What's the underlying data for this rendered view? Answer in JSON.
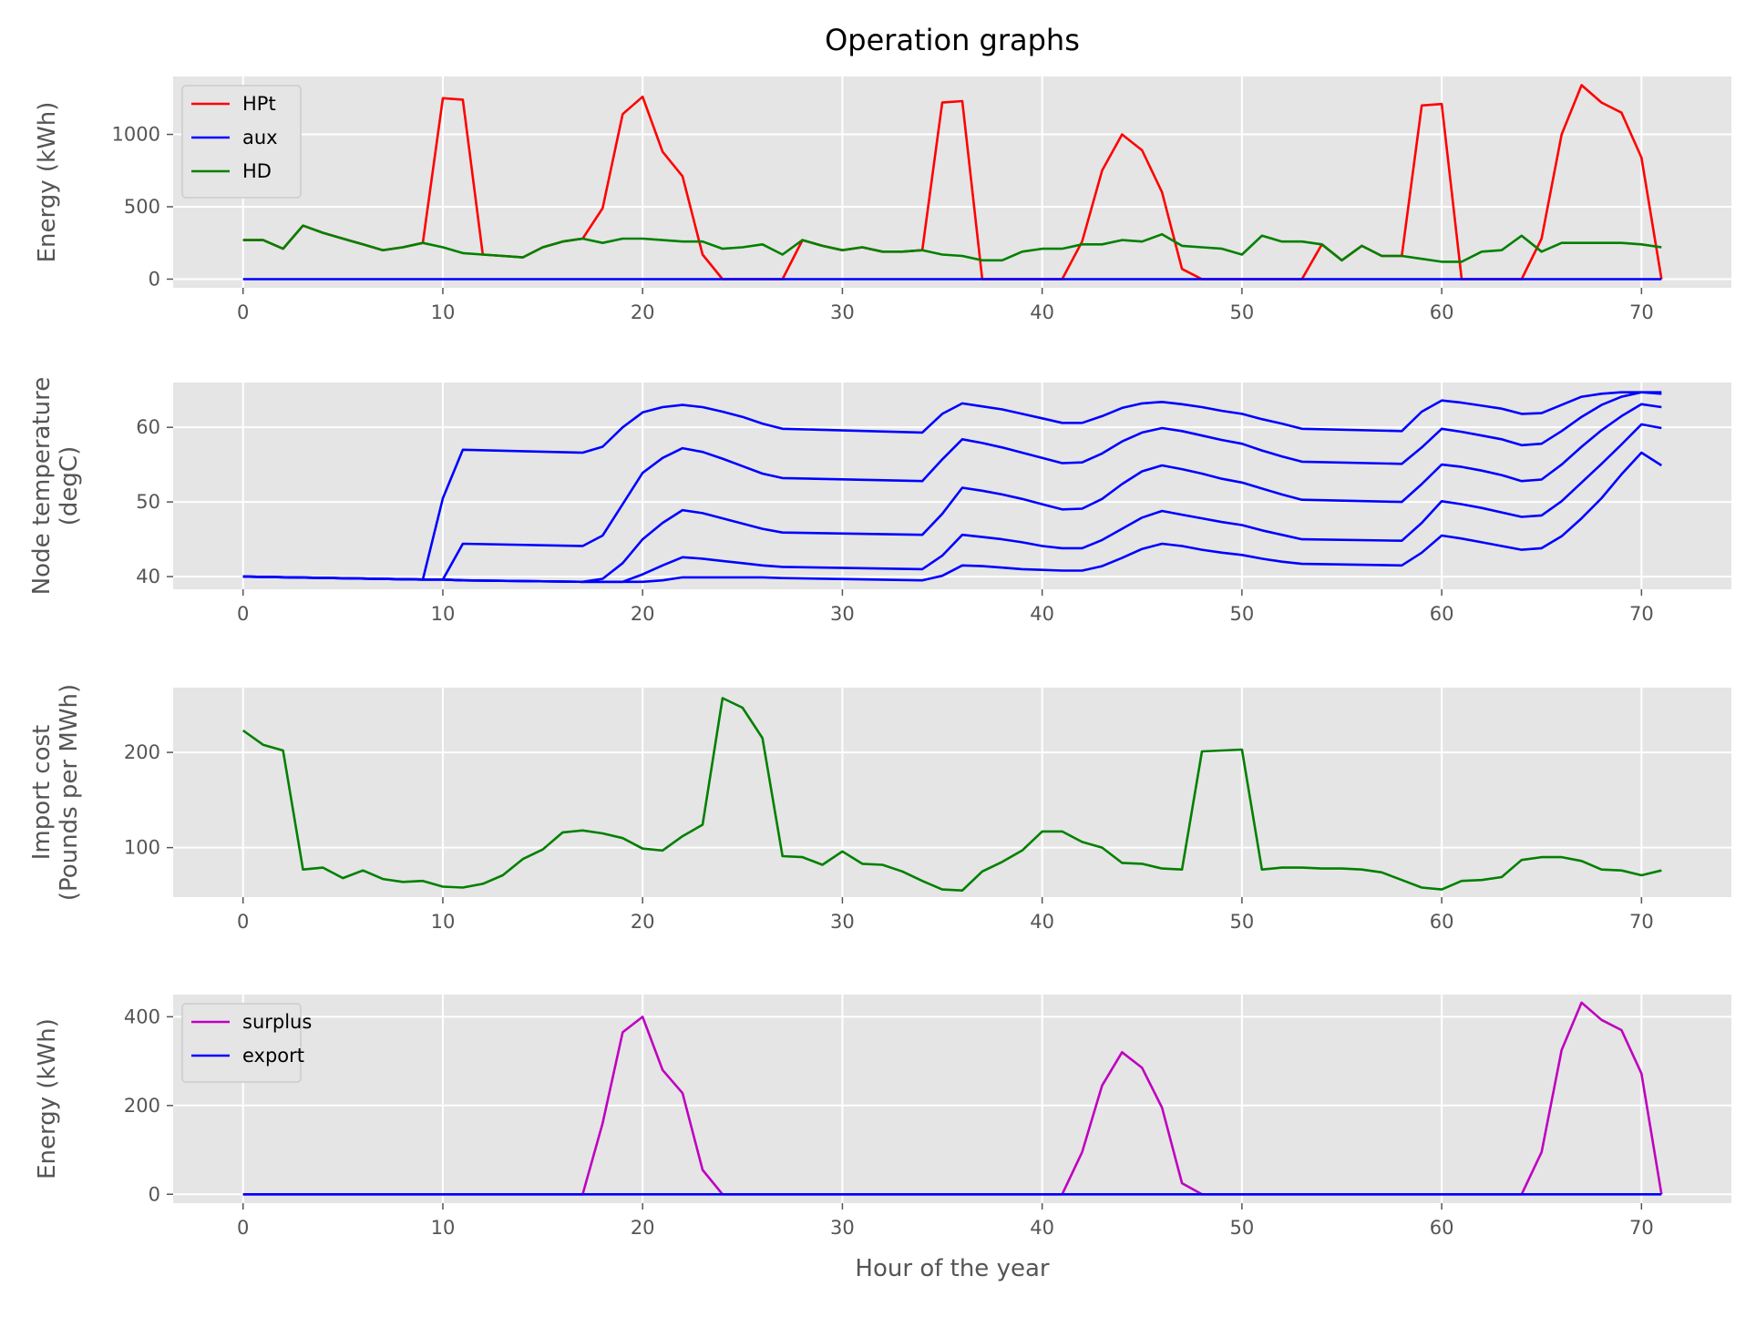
{
  "chart_data": [
    {
      "type": "line",
      "title": "Operation graphs",
      "ylabel": "Energy (kWh)",
      "xlabel": "",
      "xlim": [
        -3.5,
        74.5
      ],
      "ylim": [
        -60,
        1400
      ],
      "xticks": [
        0,
        10,
        20,
        30,
        40,
        50,
        60,
        70
      ],
      "yticks": [
        0,
        500,
        1000
      ],
      "grid": true,
      "legend": "top-left",
      "x": [
        0,
        1,
        2,
        3,
        4,
        5,
        6,
        7,
        8,
        9,
        10,
        11,
        12,
        13,
        14,
        15,
        16,
        17,
        18,
        19,
        20,
        21,
        22,
        23,
        24,
        25,
        26,
        27,
        28,
        29,
        30,
        31,
        32,
        33,
        34,
        35,
        36,
        37,
        38,
        39,
        40,
        41,
        42,
        43,
        44,
        45,
        46,
        47,
        48,
        49,
        50,
        51,
        52,
        53,
        54,
        55,
        56,
        57,
        58,
        59,
        60,
        61,
        62,
        63,
        64,
        65,
        66,
        67,
        68,
        69,
        70,
        71
      ],
      "series": [
        {
          "name": "HPt",
          "color": "#ff0000",
          "values": [
            270,
            270,
            210,
            370,
            320,
            280,
            240,
            200,
            220,
            250,
            1250,
            1240,
            170,
            160,
            150,
            220,
            260,
            280,
            490,
            1140,
            1260,
            880,
            710,
            170,
            0,
            0,
            0,
            0,
            270,
            230,
            200,
            220,
            190,
            190,
            200,
            1220,
            1230,
            0,
            0,
            0,
            0,
            0,
            260,
            750,
            1000,
            890,
            600,
            70,
            0,
            0,
            0,
            0,
            0,
            0,
            240,
            130,
            230,
            160,
            160,
            1200,
            1210,
            0,
            0,
            0,
            0,
            280,
            1000,
            1340,
            1220,
            1150,
            840,
            0
          ]
        },
        {
          "name": "aux",
          "color": "#0000ff",
          "values": [
            0,
            0,
            0,
            0,
            0,
            0,
            0,
            0,
            0,
            0,
            0,
            0,
            0,
            0,
            0,
            0,
            0,
            0,
            0,
            0,
            0,
            0,
            0,
            0,
            0,
            0,
            0,
            0,
            0,
            0,
            0,
            0,
            0,
            0,
            0,
            0,
            0,
            0,
            0,
            0,
            0,
            0,
            0,
            0,
            0,
            0,
            0,
            0,
            0,
            0,
            0,
            0,
            0,
            0,
            0,
            0,
            0,
            0,
            0,
            0,
            0,
            0,
            0,
            0,
            0,
            0,
            0,
            0,
            0,
            0,
            0,
            0
          ]
        },
        {
          "name": "HD",
          "color": "#008000",
          "values": [
            270,
            270,
            210,
            370,
            320,
            280,
            240,
            200,
            220,
            250,
            220,
            180,
            170,
            160,
            150,
            220,
            260,
            280,
            250,
            280,
            280,
            270,
            260,
            260,
            210,
            220,
            240,
            170,
            270,
            230,
            200,
            220,
            190,
            190,
            200,
            170,
            160,
            130,
            130,
            190,
            210,
            210,
            240,
            240,
            270,
            260,
            310,
            230,
            220,
            210,
            170,
            300,
            260,
            260,
            240,
            130,
            230,
            160,
            160,
            140,
            120,
            120,
            190,
            200,
            300,
            190,
            250,
            250,
            250,
            250,
            240,
            220
          ]
        }
      ]
    },
    {
      "type": "line",
      "ylabel": "Node temperature (degC)",
      "xlabel": "",
      "xlim": [
        -3.5,
        74.5
      ],
      "ylim": [
        38.3,
        66
      ],
      "xticks": [
        0,
        10,
        20,
        30,
        40,
        50,
        60,
        70
      ],
      "yticks": [
        40,
        50,
        60
      ],
      "grid": true,
      "x_points": [
        0,
        9,
        10,
        11,
        17,
        18,
        19,
        20,
        21,
        22,
        23,
        24,
        25,
        26,
        27,
        34,
        35,
        36,
        37,
        38,
        39,
        40,
        41,
        42,
        43,
        44,
        45,
        46,
        47,
        48,
        49,
        50,
        51,
        52,
        53,
        58,
        59,
        60,
        61,
        62,
        63,
        64,
        65,
        66,
        67,
        68,
        69,
        70,
        71
      ],
      "series": [
        {
          "color": "#0000ff",
          "values": [
            40,
            39.6,
            50.5,
            57,
            56.6,
            57.4,
            60,
            62,
            62.7,
            63,
            62.7,
            62.1,
            61.4,
            60.5,
            59.8,
            59.3,
            61.8,
            63.2,
            62.8,
            62.4,
            61.8,
            61.2,
            60.6,
            60.6,
            61.5,
            62.6,
            63.2,
            63.4,
            63.1,
            62.7,
            62.2,
            61.8,
            61.1,
            60.5,
            59.8,
            59.5,
            62.1,
            63.6,
            63.3,
            62.9,
            62.5,
            61.8,
            61.9,
            63,
            64.1,
            64.5,
            64.7,
            64.7,
            64.5
          ]
        },
        {
          "color": "#0000ff",
          "values": [
            40,
            39.6,
            39.6,
            44.4,
            44.1,
            45.5,
            49.7,
            53.9,
            55.9,
            57.2,
            56.7,
            55.8,
            54.8,
            53.8,
            53.2,
            52.8,
            55.7,
            58.4,
            57.9,
            57.3,
            56.6,
            55.9,
            55.2,
            55.3,
            56.5,
            58.1,
            59.3,
            59.9,
            59.5,
            58.9,
            58.3,
            57.8,
            56.9,
            56.1,
            55.4,
            55.1,
            57.3,
            59.8,
            59.4,
            58.9,
            58.4,
            57.6,
            57.8,
            59.5,
            61.4,
            63,
            64.1,
            64.7,
            64.7
          ]
        },
        {
          "color": "#0000ff",
          "values": [
            40,
            39.6,
            39.6,
            39.5,
            39.3,
            39.7,
            41.8,
            45,
            47.2,
            48.9,
            48.5,
            47.8,
            47.1,
            46.4,
            45.9,
            45.6,
            48.4,
            51.9,
            51.5,
            51,
            50.4,
            49.7,
            49,
            49.1,
            50.4,
            52.4,
            54.1,
            54.9,
            54.4,
            53.8,
            53.1,
            52.6,
            51.8,
            51,
            50.3,
            50,
            52.4,
            55,
            54.7,
            54.2,
            53.6,
            52.8,
            53,
            55,
            57.4,
            59.6,
            61.5,
            63.1,
            62.7
          ]
        },
        {
          "color": "#0000ff",
          "values": [
            40,
            39.6,
            39.6,
            39.5,
            39.3,
            39.3,
            39.3,
            40.3,
            41.5,
            42.6,
            42.4,
            42.1,
            41.8,
            41.5,
            41.3,
            41,
            42.8,
            45.6,
            45.3,
            45,
            44.6,
            44.1,
            43.8,
            43.8,
            44.9,
            46.4,
            47.9,
            48.8,
            48.3,
            47.8,
            47.3,
            46.9,
            46.2,
            45.6,
            45,
            44.8,
            47.2,
            50.1,
            49.7,
            49.2,
            48.6,
            48,
            48.2,
            50.1,
            52.6,
            55.1,
            57.7,
            60.4,
            59.9
          ]
        },
        {
          "color": "#0000ff",
          "values": [
            40,
            39.6,
            39.6,
            39.5,
            39.3,
            39.3,
            39.3,
            39.3,
            39.5,
            39.9,
            39.9,
            39.9,
            39.9,
            39.9,
            39.8,
            39.5,
            40.1,
            41.5,
            41.4,
            41.2,
            41,
            40.9,
            40.8,
            40.8,
            41.4,
            42.5,
            43.7,
            44.4,
            44.1,
            43.6,
            43.2,
            42.9,
            42.4,
            42,
            41.7,
            41.5,
            43.2,
            45.5,
            45.1,
            44.6,
            44.1,
            43.6,
            43.8,
            45.4,
            47.8,
            50.5,
            53.7,
            56.6,
            54.9
          ]
        }
      ]
    },
    {
      "type": "line",
      "ylabel": "Import cost (Pounds per MWh)",
      "xlabel": "",
      "xlim": [
        -3.5,
        74.5
      ],
      "ylim": [
        48,
        268
      ],
      "xticks": [
        0,
        10,
        20,
        30,
        40,
        50,
        60,
        70
      ],
      "yticks": [
        100,
        200
      ],
      "grid": true,
      "x": [
        0,
        1,
        2,
        3,
        4,
        5,
        6,
        7,
        8,
        9,
        10,
        11,
        12,
        13,
        14,
        15,
        16,
        17,
        18,
        19,
        20,
        21,
        22,
        23,
        24,
        25,
        26,
        27,
        28,
        29,
        30,
        31,
        32,
        33,
        34,
        35,
        36,
        37,
        38,
        39,
        40,
        41,
        42,
        43,
        44,
        45,
        46,
        47,
        48,
        49,
        50,
        51,
        52,
        53,
        54,
        55,
        56,
        57,
        58,
        59,
        60,
        61,
        62,
        63,
        64,
        65,
        66,
        67,
        68,
        69,
        70,
        71
      ],
      "series": [
        {
          "color": "#008000",
          "values": [
            223,
            208,
            202,
            77,
            79,
            68,
            76,
            67,
            64,
            65,
            59,
            58,
            62,
            71,
            88,
            98,
            116,
            118,
            115,
            110,
            99,
            97,
            112,
            124,
            257,
            247,
            215,
            91,
            90,
            82,
            96,
            83,
            82,
            75,
            65,
            56,
            55,
            75,
            85,
            97,
            117,
            117,
            106,
            100,
            84,
            83,
            78,
            77,
            201,
            202,
            203,
            77,
            79,
            79,
            78,
            78,
            77,
            74,
            66,
            58,
            56,
            65,
            66,
            69,
            87,
            90,
            90,
            86,
            77,
            76,
            71,
            76
          ]
        }
      ]
    },
    {
      "type": "line",
      "ylabel": "Energy (kWh)",
      "xlabel": "Hour of the year",
      "xlim": [
        -3.5,
        74.5
      ],
      "ylim": [
        -20,
        450
      ],
      "xticks": [
        0,
        10,
        20,
        30,
        40,
        50,
        60,
        70
      ],
      "yticks": [
        0,
        200,
        400
      ],
      "grid": true,
      "legend": "top-left",
      "x": [
        0,
        1,
        2,
        3,
        4,
        5,
        6,
        7,
        8,
        9,
        10,
        11,
        12,
        13,
        14,
        15,
        16,
        17,
        18,
        19,
        20,
        21,
        22,
        23,
        24,
        25,
        26,
        27,
        28,
        29,
        30,
        31,
        32,
        33,
        34,
        35,
        36,
        37,
        38,
        39,
        40,
        41,
        42,
        43,
        44,
        45,
        46,
        47,
        48,
        49,
        50,
        51,
        52,
        53,
        54,
        55,
        56,
        57,
        58,
        59,
        60,
        61,
        62,
        63,
        64,
        65,
        66,
        67,
        68,
        69,
        70,
        71
      ],
      "series": [
        {
          "name": "surplus",
          "color": "#bf00bf",
          "values": [
            0,
            0,
            0,
            0,
            0,
            0,
            0,
            0,
            0,
            0,
            0,
            0,
            0,
            0,
            0,
            0,
            0,
            0,
            160,
            365,
            400,
            280,
            228,
            55,
            0,
            0,
            0,
            0,
            0,
            0,
            0,
            0,
            0,
            0,
            0,
            0,
            0,
            0,
            0,
            0,
            0,
            0,
            95,
            245,
            320,
            285,
            195,
            25,
            0,
            0,
            0,
            0,
            0,
            0,
            0,
            0,
            0,
            0,
            0,
            0,
            0,
            0,
            0,
            0,
            0,
            95,
            325,
            432,
            393,
            370,
            272,
            0
          ]
        },
        {
          "name": "export",
          "color": "#0000ff",
          "values": [
            0,
            0,
            0,
            0,
            0,
            0,
            0,
            0,
            0,
            0,
            0,
            0,
            0,
            0,
            0,
            0,
            0,
            0,
            0,
            0,
            0,
            0,
            0,
            0,
            0,
            0,
            0,
            0,
            0,
            0,
            0,
            0,
            0,
            0,
            0,
            0,
            0,
            0,
            0,
            0,
            0,
            0,
            0,
            0,
            0,
            0,
            0,
            0,
            0,
            0,
            0,
            0,
            0,
            0,
            0,
            0,
            0,
            0,
            0,
            0,
            0,
            0,
            0,
            0,
            0,
            0,
            0,
            0,
            0,
            0,
            0,
            0
          ]
        }
      ]
    }
  ]
}
